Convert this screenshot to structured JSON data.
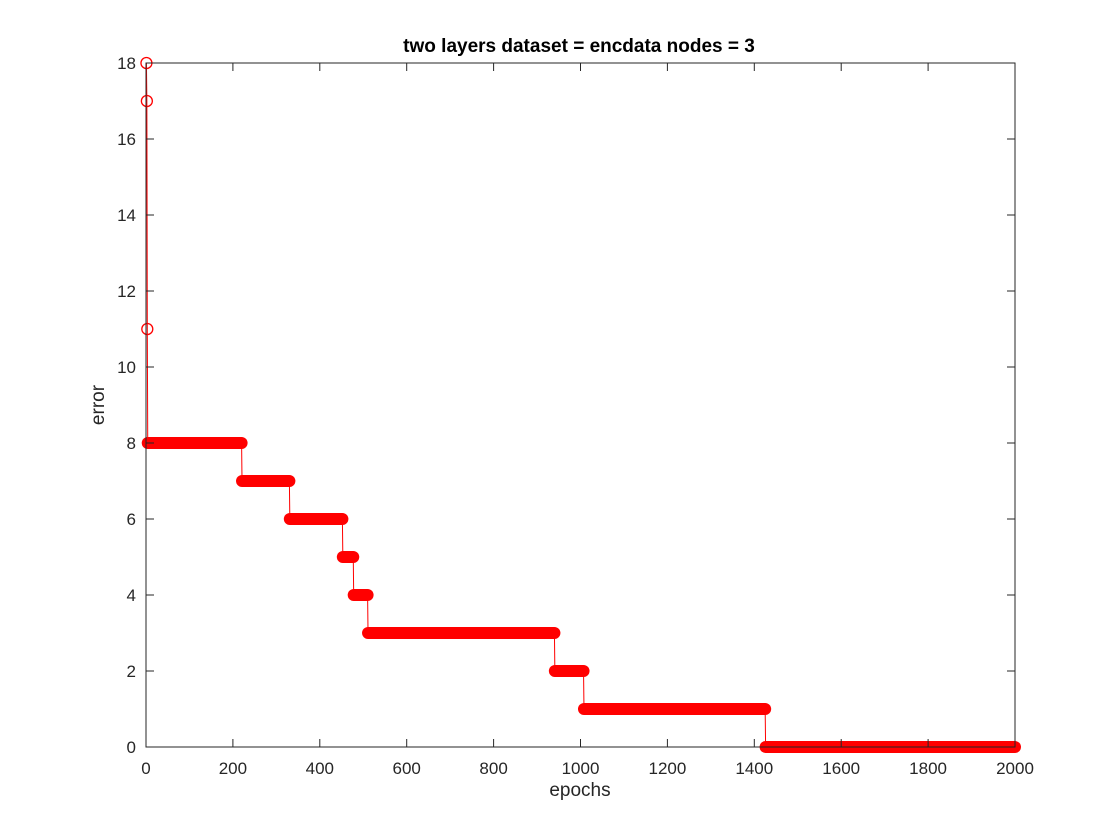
{
  "chart_data": {
    "type": "line",
    "title": "two layers  dataset = encdata  nodes = 3",
    "xlabel": "epochs",
    "ylabel": "error",
    "xlim": [
      0,
      2000
    ],
    "ylim": [
      0,
      18
    ],
    "xticks": [
      0,
      200,
      400,
      600,
      800,
      1000,
      1200,
      1400,
      1600,
      1800,
      2000
    ],
    "yticks": [
      0,
      2,
      4,
      6,
      8,
      10,
      12,
      14,
      16,
      18
    ],
    "grid": false,
    "box": true,
    "series": [
      {
        "color": "#ff0000",
        "marker": "circle",
        "linestyle": "solid",
        "points": [
          {
            "x": 1,
            "y": 18
          },
          {
            "x": 2,
            "y": 17
          },
          {
            "x": 3,
            "y": 11
          }
        ],
        "runs": [
          {
            "x_start": 4,
            "x_end": 220,
            "y": 8
          },
          {
            "x_start": 221,
            "x_end": 330,
            "y": 7
          },
          {
            "x_start": 331,
            "x_end": 452,
            "y": 6
          },
          {
            "x_start": 453,
            "x_end": 477,
            "y": 5
          },
          {
            "x_start": 478,
            "x_end": 510,
            "y": 4
          },
          {
            "x_start": 511,
            "x_end": 940,
            "y": 3
          },
          {
            "x_start": 941,
            "x_end": 1007,
            "y": 2
          },
          {
            "x_start": 1008,
            "x_end": 1425,
            "y": 1
          },
          {
            "x_start": 1426,
            "x_end": 2000,
            "y": 0
          }
        ]
      }
    ]
  }
}
